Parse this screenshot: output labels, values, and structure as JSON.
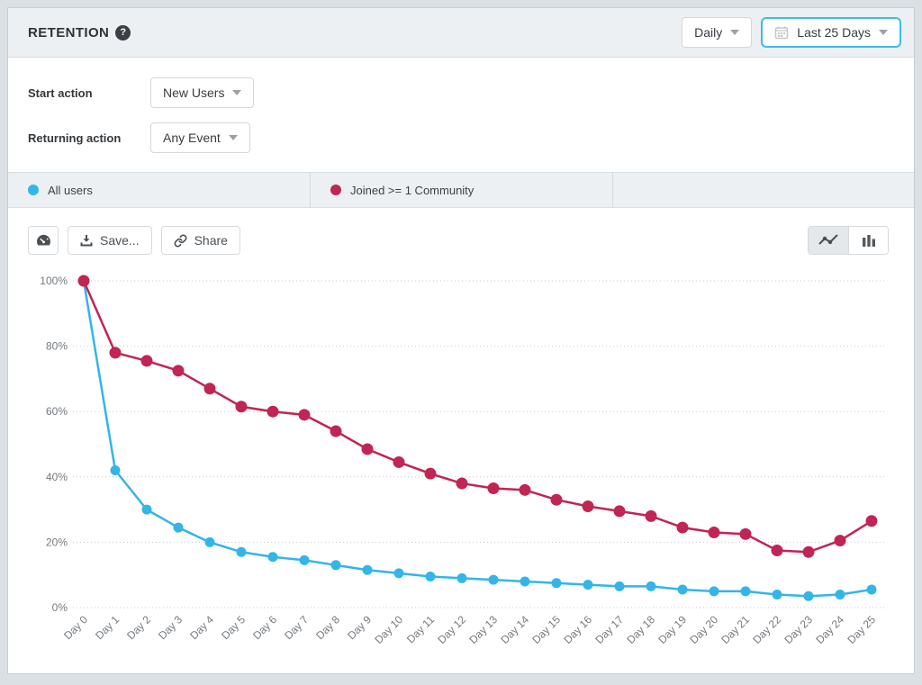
{
  "header": {
    "title": "RETENTION",
    "help": "?",
    "granularity": "Daily",
    "date_range": "Last 25 Days"
  },
  "filters": {
    "start_label": "Start action",
    "start_value": "New Users",
    "returning_label": "Returning action",
    "returning_value": "Any Event"
  },
  "legend": [
    {
      "label": "All users",
      "color": "#33b5e8"
    },
    {
      "label": "Joined >= 1 Community",
      "color": "#c02553"
    }
  ],
  "toolbar": {
    "save_label": "Save...",
    "share_label": "Share"
  },
  "colors": {
    "accent_blue": "#3bbced",
    "series_blue": "#33b5e8",
    "series_red": "#c02553"
  },
  "chart_data": {
    "type": "line",
    "x": [
      "Day 0",
      "Day 1",
      "Day 2",
      "Day 3",
      "Day 4",
      "Day 5",
      "Day 6",
      "Day 7",
      "Day 8",
      "Day 9",
      "Day 10",
      "Day 11",
      "Day 12",
      "Day 13",
      "Day 14",
      "Day 15",
      "Day 16",
      "Day 17",
      "Day 18",
      "Day 19",
      "Day 20",
      "Day 21",
      "Day 22",
      "Day 23",
      "Day 24",
      "Day 25"
    ],
    "series": [
      {
        "name": "All users",
        "color": "#33b5e8",
        "values": [
          100,
          42,
          30,
          24.5,
          20,
          17,
          15.5,
          14.5,
          13,
          11.5,
          10.5,
          9.5,
          9,
          8.5,
          8,
          7.5,
          7,
          6.5,
          6.5,
          5.5,
          5,
          5,
          4,
          3.5,
          4,
          5.5
        ]
      },
      {
        "name": "Joined >= 1 Community",
        "color": "#c02553",
        "values": [
          100,
          78,
          75.5,
          72.5,
          67,
          61.5,
          60,
          59,
          54,
          48.5,
          44.5,
          41,
          38,
          36.5,
          36,
          33,
          31,
          29.5,
          28,
          24.5,
          23,
          22.5,
          17.5,
          17,
          20.5,
          26.5
        ]
      }
    ],
    "ytick_values": [
      0,
      20,
      40,
      60,
      80,
      100
    ],
    "ytick_labels": [
      "0%",
      "20%",
      "40%",
      "60%",
      "80%",
      "100%"
    ],
    "ylim": [
      0,
      100
    ],
    "grid": true,
    "legend_position": "top"
  }
}
